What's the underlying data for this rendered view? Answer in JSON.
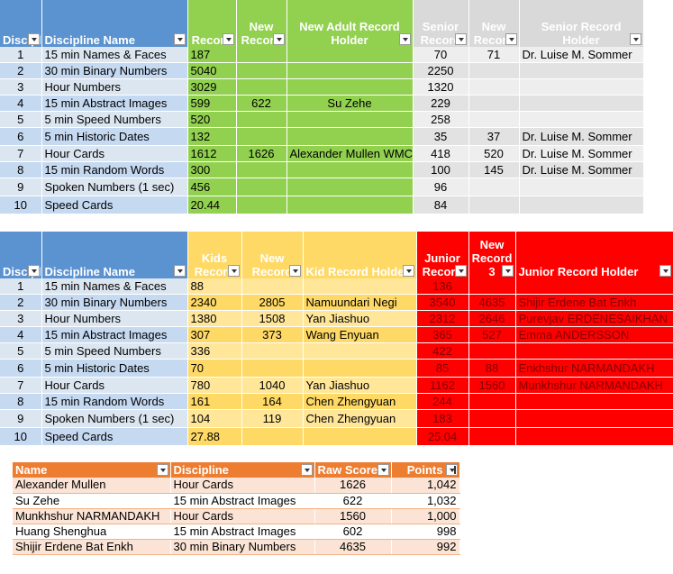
{
  "table1": {
    "headers": {
      "line": "Discipline",
      "name": "Discipline Name",
      "adult_record": "Record",
      "adult_new": "New Record",
      "adult_holder": "New Adult Record Holder",
      "senior_record": "Senior Record",
      "senior_new": "New Record",
      "senior_holder": "Senior Record Holder"
    },
    "rows": [
      {
        "line": "1",
        "name": "15 min Names & Faces",
        "rec": "187",
        "new": "",
        "holder": "",
        "srec": "70",
        "snew": "71",
        "sholder": "Dr. Luise M. Sommer"
      },
      {
        "line": "2",
        "name": "30 min Binary Numbers",
        "rec": "5040",
        "new": "",
        "holder": "",
        "srec": "2250",
        "snew": "",
        "sholder": ""
      },
      {
        "line": "3",
        "name": "Hour Numbers",
        "rec": "3029",
        "new": "",
        "holder": "",
        "srec": "1320",
        "snew": "",
        "sholder": ""
      },
      {
        "line": "4",
        "name": "15 min Abstract Images",
        "rec": "599",
        "new": "622",
        "holder": "Su Zehe",
        "srec": "229",
        "snew": "",
        "sholder": ""
      },
      {
        "line": "5",
        "name": "5 min Speed Numbers",
        "rec": "520",
        "new": "",
        "holder": "",
        "srec": "258",
        "snew": "",
        "sholder": ""
      },
      {
        "line": "6",
        "name": "5 min Historic Dates",
        "rec": "132",
        "new": "",
        "holder": "",
        "srec": "35",
        "snew": "37",
        "sholder": "Dr. Luise M. Sommer"
      },
      {
        "line": "7",
        "name": "Hour Cards",
        "rec": "1612",
        "new": "1626",
        "holder": "Alexander Mullen WMC",
        "srec": "418",
        "snew": "520",
        "sholder": "Dr. Luise M. Sommer"
      },
      {
        "line": "8",
        "name": "15 min Random Words",
        "rec": "300",
        "new": "",
        "holder": "",
        "srec": "100",
        "snew": "145",
        "sholder": "Dr. Luise M. Sommer"
      },
      {
        "line": "9",
        "name": "Spoken Numbers (1 sec)",
        "rec": "456",
        "new": "",
        "holder": "",
        "srec": "96",
        "snew": "",
        "sholder": ""
      },
      {
        "line": "10",
        "name": "Speed Cards",
        "rec": "20.44",
        "new": "",
        "holder": "",
        "srec": "84",
        "snew": "",
        "sholder": ""
      }
    ]
  },
  "table2": {
    "headers": {
      "line": "Discipline",
      "name": "Discipline Name",
      "kids_record": "Kids Record",
      "kids_new": "New Record",
      "kids_holder": "Kid Record Holder",
      "junior_record": "Junior Record",
      "junior_new": "New Record 3",
      "junior_holder": "Junior Record Holder"
    },
    "rows": [
      {
        "line": "1",
        "name": "15 min Names & Faces",
        "rec": "88",
        "new": "",
        "holder": "",
        "jrec": "136",
        "jnew": "",
        "jholder": ""
      },
      {
        "line": "2",
        "name": "30 min Binary Numbers",
        "rec": "2340",
        "new": "2805",
        "holder": "Namuundari Negi",
        "jrec": "3540",
        "jnew": "4635",
        "jholder": "Shijir Erdene Bat Enkh"
      },
      {
        "line": "3",
        "name": "Hour Numbers",
        "rec": "1380",
        "new": "1508",
        "holder": "Yan Jiashuo",
        "jrec": "2312",
        "jnew": "2646",
        "jholder": "Purevjav ERDENESAIKHAN"
      },
      {
        "line": "4",
        "name": "15 min Abstract Images",
        "rec": "307",
        "new": "373",
        "holder": "Wang Enyuan",
        "jrec": "365",
        "jnew": "527",
        "jholder": "Emma ANDERSSON"
      },
      {
        "line": "5",
        "name": "5 min Speed Numbers",
        "rec": "336",
        "new": "",
        "holder": "",
        "jrec": "422",
        "jnew": "",
        "jholder": ""
      },
      {
        "line": "6",
        "name": "5 min Historic Dates",
        "rec": "70",
        "new": "",
        "holder": "",
        "jrec": "85",
        "jnew": "88",
        "jholder": "Enkhshur NARMANDAKH"
      },
      {
        "line": "7",
        "name": "Hour Cards",
        "rec": "780",
        "new": "1040",
        "holder": "Yan Jiashuo",
        "jrec": "1162",
        "jnew": "1560",
        "jholder": "Munkhshur NARMANDAKH"
      },
      {
        "line": "8",
        "name": "15 min Random Words",
        "rec": "161",
        "new": "164",
        "holder": "Chen Zhengyuan",
        "jrec": "244",
        "jnew": "",
        "jholder": ""
      },
      {
        "line": "9",
        "name": "Spoken Numbers (1 sec)",
        "rec": "104",
        "new": "119",
        "holder": "Chen Zhengyuan",
        "jrec": "183",
        "jnew": "",
        "jholder": ""
      },
      {
        "line": "10",
        "name": "Speed Cards",
        "rec": "27.88",
        "new": "",
        "holder": "",
        "jrec": "25.04",
        "jnew": "",
        "jholder": ""
      }
    ]
  },
  "table3": {
    "headers": {
      "name": "Name",
      "discipline": "Discipline",
      "raw": "Raw Score",
      "points": "Points"
    },
    "rows": [
      {
        "name": "Alexander Mullen",
        "discipline": "Hour Cards",
        "raw": "1626",
        "points": "1,042"
      },
      {
        "name": "Su Zehe",
        "discipline": "15 min Abstract Images",
        "raw": "622",
        "points": "1,032"
      },
      {
        "name": "Munkhshur NARMANDAKH",
        "discipline": "Hour Cards",
        "raw": "1560",
        "points": "1,000"
      },
      {
        "name": "Huang Shenghua",
        "discipline": "15 min Abstract Images",
        "raw": "602",
        "points": "998"
      },
      {
        "name": "Shijir Erdene Bat Enkh",
        "discipline": "30 min Binary Numbers",
        "raw": "4635",
        "points": "992"
      }
    ]
  }
}
